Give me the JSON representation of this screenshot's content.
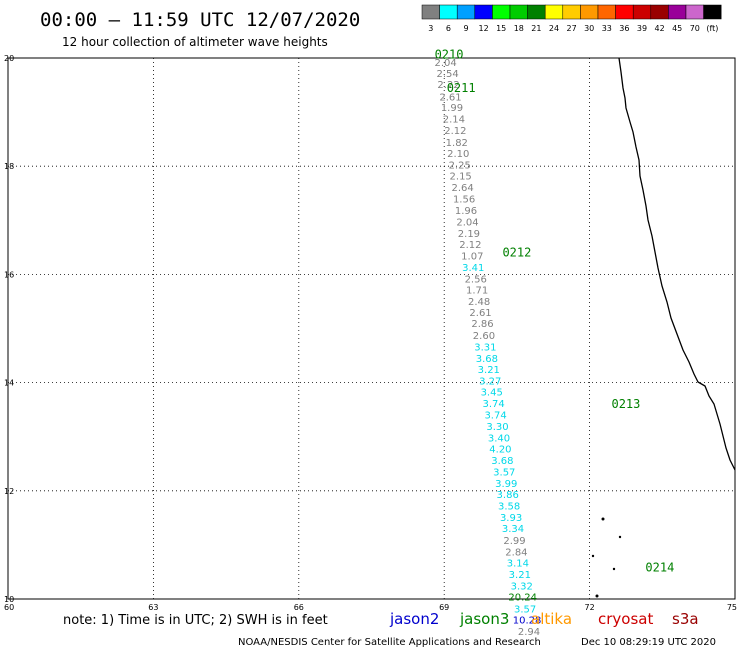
{
  "header": {
    "title": "00:00 – 11:59 UTC 12/07/2020",
    "subtitle": "12 hour collection of altimeter wave heights"
  },
  "colorbar": {
    "labels": [
      "3",
      "6",
      "9",
      "12",
      "15",
      "18",
      "21",
      "24",
      "27",
      "30",
      "33",
      "36",
      "39",
      "42",
      "45",
      "70",
      "(ft)"
    ],
    "colors": [
      "#808080",
      "#00ffff",
      "#00a0ff",
      "#0000ff",
      "#00ff00",
      "#00cc00",
      "#008000",
      "#ffff00",
      "#ffcc00",
      "#ff9900",
      "#ff6600",
      "#ff0000",
      "#cc0000",
      "#990000",
      "#990099",
      "#cc66cc",
      "#000000"
    ]
  },
  "note": "note: 1) Time is in UTC; 2) SWH is in feet",
  "satellites": [
    {
      "name": "jason2",
      "color": "#0000cc"
    },
    {
      "name": "jason3",
      "color": "#008000"
    },
    {
      "name": "altika",
      "color": "#ff9900"
    },
    {
      "name": "cryosat",
      "color": "#cc0000"
    },
    {
      "name": "s3a",
      "color": "#990000"
    }
  ],
  "footer_left": "NOAA/NESDIS Center for Satellite Applications and Research",
  "footer_right": "Dec 10 08:29:19 UTC 2020",
  "chart_data": {
    "type": "scatter",
    "x_axis": {
      "ticks": [
        60,
        63,
        66,
        69,
        72,
        75
      ],
      "range": [
        60,
        75
      ]
    },
    "y_axis": {
      "ticks": [
        10,
        12,
        14,
        16,
        18,
        20
      ],
      "range": [
        10,
        20
      ]
    },
    "grid": true,
    "points": [
      {
        "x": 69.03,
        "y": 19.91,
        "v": "2.04",
        "c": "gray"
      },
      {
        "x": 69.07,
        "y": 19.7,
        "v": "2.54",
        "c": "gray"
      },
      {
        "x": 69.09,
        "y": 19.5,
        "v": "2.22",
        "c": "gray"
      },
      {
        "x": 69.13,
        "y": 19.27,
        "v": "2.61",
        "c": "gray"
      },
      {
        "x": 69.16,
        "y": 19.08,
        "v": "1.99",
        "c": "gray"
      },
      {
        "x": 69.2,
        "y": 18.86,
        "v": "2.14",
        "c": "gray"
      },
      {
        "x": 69.23,
        "y": 18.65,
        "v": "2.12",
        "c": "gray"
      },
      {
        "x": 69.26,
        "y": 18.43,
        "v": "1.82",
        "c": "gray"
      },
      {
        "x": 69.29,
        "y": 18.23,
        "v": "2.10",
        "c": "gray"
      },
      {
        "x": 69.32,
        "y": 18.01,
        "v": "2.25",
        "c": "gray"
      },
      {
        "x": 69.34,
        "y": 17.81,
        "v": "2.15",
        "c": "gray"
      },
      {
        "x": 69.38,
        "y": 17.6,
        "v": "2.64",
        "c": "gray"
      },
      {
        "x": 69.41,
        "y": 17.38,
        "v": "1.56",
        "c": "gray"
      },
      {
        "x": 69.45,
        "y": 17.17,
        "v": "1.96",
        "c": "gray"
      },
      {
        "x": 69.48,
        "y": 16.96,
        "v": "2.04",
        "c": "gray"
      },
      {
        "x": 69.51,
        "y": 16.75,
        "v": "2.19",
        "c": "gray"
      },
      {
        "x": 69.54,
        "y": 16.54,
        "v": "2.12",
        "c": "gray"
      },
      {
        "x": 69.58,
        "y": 16.33,
        "v": "1.07",
        "c": "gray"
      },
      {
        "x": 69.6,
        "y": 16.12,
        "v": "3.41",
        "c": "cyan"
      },
      {
        "x": 69.65,
        "y": 15.91,
        "v": "2.56",
        "c": "gray"
      },
      {
        "x": 69.68,
        "y": 15.7,
        "v": "1.71",
        "c": "gray"
      },
      {
        "x": 69.72,
        "y": 15.49,
        "v": "2.48",
        "c": "gray"
      },
      {
        "x": 69.75,
        "y": 15.29,
        "v": "2.61",
        "c": "gray"
      },
      {
        "x": 69.79,
        "y": 15.08,
        "v": "2.86",
        "c": "gray"
      },
      {
        "x": 69.82,
        "y": 14.86,
        "v": "2.60",
        "c": "gray"
      },
      {
        "x": 69.85,
        "y": 14.65,
        "v": "3.31",
        "c": "cyan"
      },
      {
        "x": 69.88,
        "y": 14.44,
        "v": "3.68",
        "c": "cyan"
      },
      {
        "x": 69.92,
        "y": 14.23,
        "v": "3.21",
        "c": "cyan"
      },
      {
        "x": 69.95,
        "y": 14.02,
        "v": "3.27",
        "c": "cyan"
      },
      {
        "x": 69.98,
        "y": 13.82,
        "v": "3.45",
        "c": "cyan"
      },
      {
        "x": 70.02,
        "y": 13.6,
        "v": "3.74",
        "c": "cyan"
      },
      {
        "x": 70.06,
        "y": 13.39,
        "v": "3.74",
        "c": "cyan"
      },
      {
        "x": 70.1,
        "y": 13.18,
        "v": "3.30",
        "c": "cyan"
      },
      {
        "x": 70.13,
        "y": 12.97,
        "v": "3.40",
        "c": "cyan"
      },
      {
        "x": 70.16,
        "y": 12.76,
        "v": "4.20",
        "c": "cyan"
      },
      {
        "x": 70.2,
        "y": 12.55,
        "v": "3.68",
        "c": "cyan"
      },
      {
        "x": 70.24,
        "y": 12.34,
        "v": "3.57",
        "c": "cyan"
      },
      {
        "x": 70.28,
        "y": 12.13,
        "v": "3.99",
        "c": "cyan"
      },
      {
        "x": 70.31,
        "y": 11.92,
        "v": "3.86",
        "c": "cyan"
      },
      {
        "x": 70.34,
        "y": 11.71,
        "v": "3.58",
        "c": "cyan"
      },
      {
        "x": 70.38,
        "y": 11.5,
        "v": "3.93",
        "c": "cyan"
      },
      {
        "x": 70.42,
        "y": 11.29,
        "v": "3.34",
        "c": "cyan"
      },
      {
        "x": 70.45,
        "y": 11.07,
        "v": "2.99",
        "c": "gray"
      },
      {
        "x": 70.49,
        "y": 10.86,
        "v": "2.84",
        "c": "gray"
      },
      {
        "x": 70.52,
        "y": 10.66,
        "v": "3.14",
        "c": "cyan"
      },
      {
        "x": 70.56,
        "y": 10.44,
        "v": "3.21",
        "c": "cyan"
      },
      {
        "x": 70.6,
        "y": 10.23,
        "v": "3.32",
        "c": "cyan"
      },
      {
        "x": 70.62,
        "y": 10.03,
        "v": "20.24",
        "c": "green"
      },
      {
        "x": 70.67,
        "y": 9.81,
        "v": "3.57",
        "c": "cyan"
      },
      {
        "x": 70.71,
        "y": 9.6,
        "v": "10.28",
        "c": "blue"
      },
      {
        "x": 70.75,
        "y": 9.39,
        "v": "2.94",
        "c": "gray"
      }
    ],
    "passes": [
      {
        "label": "0210",
        "x": 69.1,
        "y": 19.99
      },
      {
        "label": "0211",
        "x": 69.35,
        "y": 19.37
      },
      {
        "label": "0212",
        "x": 70.5,
        "y": 16.33
      },
      {
        "label": "0213",
        "x": 72.75,
        "y": 13.53
      },
      {
        "label": "0214",
        "x": 73.45,
        "y": 10.51
      }
    ]
  }
}
